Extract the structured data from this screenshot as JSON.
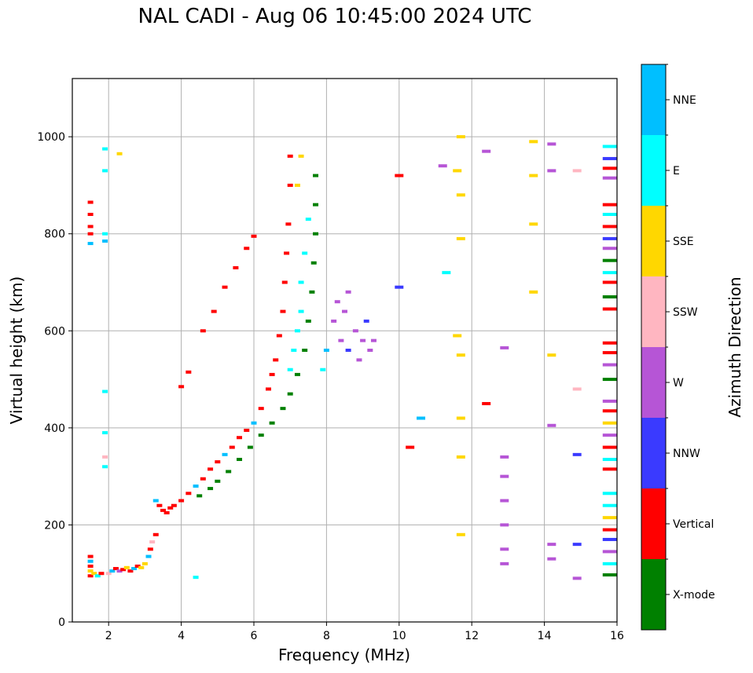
{
  "chart_data": {
    "type": "scatter",
    "title": "NAL CADI - Aug 06 10:45:00 2024 UTC",
    "xlabel": "Frequency (MHz)",
    "ylabel": "Virtual height (km)",
    "xlim": [
      1,
      16
    ],
    "ylim": [
      0,
      1120
    ],
    "xticks": [
      2,
      4,
      6,
      8,
      10,
      12,
      14,
      16
    ],
    "yticks": [
      0,
      200,
      400,
      600,
      800,
      1000
    ],
    "grid": true,
    "colorbar": {
      "label": "Azimuth Direction",
      "placement": "right",
      "categories": [
        {
          "name": "X-mode",
          "color": "#008000"
        },
        {
          "name": "Vertical",
          "color": "#ff0000"
        },
        {
          "name": "NNW",
          "color": "#3a3aff"
        },
        {
          "name": "W",
          "color": "#b655d6"
        },
        {
          "name": "SSW",
          "color": "#ffb6c1"
        },
        {
          "name": "SSE",
          "color": "#ffd700"
        },
        {
          "name": "E",
          "color": "#00ffff"
        },
        {
          "name": "NNE",
          "color": "#00bfff"
        }
      ]
    },
    "series": [
      {
        "name": "low-E-trace",
        "points": [
          [
            1.5,
            95,
            "Vertical"
          ],
          [
            1.5,
            105,
            "SSE"
          ],
          [
            1.5,
            115,
            "Vertical"
          ],
          [
            1.5,
            125,
            "NNE"
          ],
          [
            1.5,
            135,
            "Vertical"
          ],
          [
            1.6,
            100,
            "SSE"
          ],
          [
            1.7,
            95,
            "E"
          ],
          [
            1.8,
            100,
            "Vertical"
          ],
          [
            2.0,
            100,
            "SSW"
          ],
          [
            2.1,
            105,
            "NNE"
          ],
          [
            2.2,
            110,
            "Vertical"
          ],
          [
            2.3,
            105,
            "W"
          ],
          [
            2.4,
            108,
            "Vertical"
          ],
          [
            2.5,
            112,
            "SSE"
          ],
          [
            2.6,
            105,
            "Vertical"
          ],
          [
            2.7,
            110,
            "NNE"
          ],
          [
            2.8,
            115,
            "Vertical"
          ],
          [
            2.9,
            112,
            "SSE"
          ],
          [
            3.0,
            120,
            "SSE"
          ],
          [
            3.1,
            135,
            "NNE"
          ],
          [
            3.15,
            150,
            "Vertical"
          ],
          [
            3.2,
            165,
            "SSW"
          ],
          [
            3.3,
            180,
            "Vertical"
          ]
        ]
      },
      {
        "name": "F-trace-ordinary",
        "points": [
          [
            3.3,
            250,
            "NNE"
          ],
          [
            3.4,
            240,
            "Vertical"
          ],
          [
            3.5,
            230,
            "Vertical"
          ],
          [
            3.6,
            225,
            "Vertical"
          ],
          [
            3.7,
            235,
            "Vertical"
          ],
          [
            3.8,
            240,
            "Vertical"
          ],
          [
            4.0,
            250,
            "Vertical"
          ],
          [
            4.2,
            265,
            "Vertical"
          ],
          [
            4.4,
            280,
            "NNE"
          ],
          [
            4.6,
            295,
            "Vertical"
          ],
          [
            4.8,
            315,
            "Vertical"
          ],
          [
            5.0,
            330,
            "Vertical"
          ],
          [
            5.2,
            345,
            "NNE"
          ],
          [
            5.4,
            360,
            "Vertical"
          ],
          [
            5.6,
            380,
            "Vertical"
          ],
          [
            5.8,
            395,
            "Vertical"
          ],
          [
            6.0,
            410,
            "NNE"
          ],
          [
            6.2,
            440,
            "Vertical"
          ],
          [
            6.4,
            480,
            "Vertical"
          ],
          [
            6.5,
            510,
            "Vertical"
          ],
          [
            6.6,
            540,
            "Vertical"
          ],
          [
            6.7,
            590,
            "Vertical"
          ],
          [
            6.8,
            640,
            "Vertical"
          ],
          [
            6.85,
            700,
            "Vertical"
          ],
          [
            6.9,
            760,
            "Vertical"
          ],
          [
            6.95,
            820,
            "Vertical"
          ],
          [
            7.0,
            900,
            "Vertical"
          ],
          [
            7.0,
            960,
            "Vertical"
          ]
        ]
      },
      {
        "name": "F-trace-xmode",
        "points": [
          [
            4.5,
            260,
            "X-mode"
          ],
          [
            4.8,
            275,
            "X-mode"
          ],
          [
            5.0,
            290,
            "X-mode"
          ],
          [
            5.3,
            310,
            "X-mode"
          ],
          [
            5.6,
            335,
            "X-mode"
          ],
          [
            5.9,
            360,
            "X-mode"
          ],
          [
            6.2,
            385,
            "X-mode"
          ],
          [
            6.5,
            410,
            "X-mode"
          ],
          [
            6.8,
            440,
            "X-mode"
          ],
          [
            7.0,
            470,
            "X-mode"
          ],
          [
            7.2,
            510,
            "X-mode"
          ],
          [
            7.4,
            560,
            "X-mode"
          ],
          [
            7.5,
            620,
            "X-mode"
          ],
          [
            7.6,
            680,
            "X-mode"
          ],
          [
            7.65,
            740,
            "X-mode"
          ],
          [
            7.7,
            800,
            "X-mode"
          ],
          [
            7.7,
            860,
            "X-mode"
          ],
          [
            7.7,
            920,
            "X-mode"
          ]
        ]
      },
      {
        "name": "F-trace-east",
        "points": [
          [
            7.0,
            520,
            "E"
          ],
          [
            7.1,
            560,
            "E"
          ],
          [
            7.2,
            600,
            "E"
          ],
          [
            7.3,
            640,
            "E"
          ],
          [
            7.3,
            700,
            "E"
          ],
          [
            7.4,
            760,
            "E"
          ],
          [
            7.5,
            830,
            "E"
          ],
          [
            7.9,
            520,
            "E"
          ],
          [
            8.0,
            560,
            "NNE"
          ],
          [
            7.2,
            900,
            "SSE"
          ],
          [
            7.3,
            960,
            "SSE"
          ]
        ]
      },
      {
        "name": "spread-west",
        "points": [
          [
            8.2,
            620,
            "W"
          ],
          [
            8.4,
            580,
            "W"
          ],
          [
            8.5,
            640,
            "W"
          ],
          [
            8.6,
            560,
            "NNW"
          ],
          [
            8.8,
            600,
            "W"
          ],
          [
            8.9,
            540,
            "W"
          ],
          [
            9.0,
            580,
            "W"
          ],
          [
            9.1,
            620,
            "NNW"
          ],
          [
            9.2,
            560,
            "W"
          ],
          [
            9.3,
            580,
            "W"
          ],
          [
            8.3,
            660,
            "W"
          ],
          [
            8.6,
            680,
            "W"
          ]
        ]
      },
      {
        "name": "upper-secondary-trace",
        "points": [
          [
            4.2,
            515,
            "Vertical"
          ],
          [
            4.6,
            600,
            "Vertical"
          ],
          [
            4.9,
            640,
            "Vertical"
          ],
          [
            5.2,
            690,
            "Vertical"
          ],
          [
            5.5,
            730,
            "Vertical"
          ],
          [
            5.8,
            770,
            "Vertical"
          ],
          [
            6.0,
            795,
            "Vertical"
          ],
          [
            4.0,
            485,
            "Vertical"
          ]
        ]
      },
      {
        "name": "scattered-high-freq",
        "points": [
          [
            11.7,
            1000,
            "SSE"
          ],
          [
            11.6,
            930,
            "SSE"
          ],
          [
            11.7,
            880,
            "SSE"
          ],
          [
            11.7,
            790,
            "SSE"
          ],
          [
            11.6,
            590,
            "SSE"
          ],
          [
            11.7,
            550,
            "SSE"
          ],
          [
            11.7,
            420,
            "SSE"
          ],
          [
            11.7,
            340,
            "SSE"
          ],
          [
            11.7,
            180,
            "SSE"
          ],
          [
            12.9,
            565,
            "W"
          ],
          [
            12.9,
            340,
            "W"
          ],
          [
            12.9,
            300,
            "W"
          ],
          [
            12.9,
            250,
            "W"
          ],
          [
            12.9,
            200,
            "W"
          ],
          [
            12.9,
            150,
            "W"
          ],
          [
            12.9,
            120,
            "W"
          ],
          [
            13.7,
            990,
            "SSE"
          ],
          [
            13.7,
            920,
            "SSE"
          ],
          [
            13.7,
            820,
            "SSE"
          ],
          [
            13.7,
            680,
            "SSE"
          ],
          [
            14.2,
            985,
            "W"
          ],
          [
            14.2,
            930,
            "W"
          ],
          [
            14.2,
            550,
            "SSE"
          ],
          [
            14.2,
            405,
            "W"
          ],
          [
            14.2,
            160,
            "W"
          ],
          [
            14.2,
            130,
            "W"
          ],
          [
            14.9,
            930,
            "SSW"
          ],
          [
            14.9,
            480,
            "SSW"
          ],
          [
            14.9,
            345,
            "NNW"
          ],
          [
            14.9,
            160,
            "NNW"
          ],
          [
            14.9,
            90,
            "W"
          ],
          [
            10.0,
            920,
            "Vertical"
          ],
          [
            10.0,
            690,
            "NNW"
          ],
          [
            10.6,
            420,
            "NNE"
          ],
          [
            10.3,
            360,
            "Vertical"
          ],
          [
            11.2,
            940,
            "W"
          ],
          [
            11.3,
            720,
            "E"
          ],
          [
            12.4,
            450,
            "Vertical"
          ],
          [
            12.4,
            970,
            "W"
          ]
        ]
      },
      {
        "name": "right-edge-band",
        "points": [
          [
            15.8,
            980,
            "E"
          ],
          [
            15.8,
            955,
            "NNW"
          ],
          [
            15.8,
            935,
            "Vertical"
          ],
          [
            15.8,
            915,
            "W"
          ],
          [
            15.8,
            860,
            "Vertical"
          ],
          [
            15.8,
            840,
            "E"
          ],
          [
            15.8,
            815,
            "Vertical"
          ],
          [
            15.8,
            790,
            "NNW"
          ],
          [
            15.8,
            770,
            "W"
          ],
          [
            15.8,
            745,
            "X-mode"
          ],
          [
            15.8,
            720,
            "E"
          ],
          [
            15.8,
            700,
            "Vertical"
          ],
          [
            15.8,
            670,
            "X-mode"
          ],
          [
            15.8,
            645,
            "Vertical"
          ],
          [
            15.8,
            575,
            "Vertical"
          ],
          [
            15.8,
            555,
            "Vertical"
          ],
          [
            15.8,
            530,
            "W"
          ],
          [
            15.8,
            500,
            "X-mode"
          ],
          [
            15.8,
            455,
            "W"
          ],
          [
            15.8,
            435,
            "Vertical"
          ],
          [
            15.8,
            410,
            "SSE"
          ],
          [
            15.8,
            385,
            "W"
          ],
          [
            15.8,
            360,
            "Vertical"
          ],
          [
            15.8,
            335,
            "E"
          ],
          [
            15.8,
            315,
            "Vertical"
          ],
          [
            15.8,
            265,
            "E"
          ],
          [
            15.8,
            240,
            "E"
          ],
          [
            15.8,
            215,
            "SSE"
          ],
          [
            15.8,
            190,
            "Vertical"
          ],
          [
            15.8,
            170,
            "NNW"
          ],
          [
            15.8,
            145,
            "W"
          ],
          [
            15.8,
            120,
            "E"
          ],
          [
            15.8,
            97,
            "X-mode"
          ]
        ]
      },
      {
        "name": "low-freq-sporadic",
        "points": [
          [
            1.5,
            865,
            "Vertical"
          ],
          [
            1.5,
            840,
            "Vertical"
          ],
          [
            1.5,
            815,
            "Vertical"
          ],
          [
            1.5,
            800,
            "Vertical"
          ],
          [
            1.5,
            780,
            "NNE"
          ],
          [
            1.9,
            975,
            "E"
          ],
          [
            1.9,
            930,
            "E"
          ],
          [
            1.9,
            800,
            "E"
          ],
          [
            1.9,
            785,
            "NNE"
          ],
          [
            2.3,
            965,
            "SSE"
          ],
          [
            1.9,
            475,
            "E"
          ],
          [
            1.9,
            390,
            "E"
          ],
          [
            1.9,
            340,
            "SSW"
          ],
          [
            1.9,
            320,
            "E"
          ],
          [
            4.4,
            92,
            "E"
          ]
        ]
      }
    ]
  }
}
